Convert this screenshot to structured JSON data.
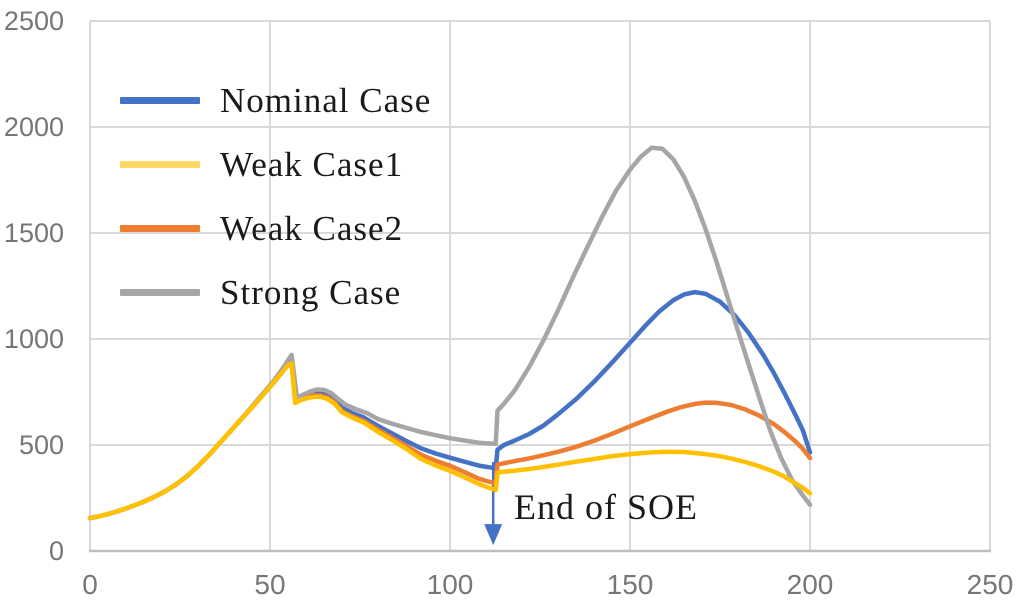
{
  "figure": {
    "background": "#FFFFFF",
    "gridline_color": "#D9D9D9",
    "axis_line_color": "#BFBFBF",
    "tick_label_color": "#767676"
  },
  "legend": {
    "items": [
      {
        "label": "Nominal Case",
        "swatch_color": "#4472C4"
      },
      {
        "label": "Weak Case1",
        "swatch_color": "#FFD966"
      },
      {
        "label": "Weak Case2",
        "swatch_color": "#ED7D31"
      },
      {
        "label": "Strong Case",
        "swatch_color": "#A6A6A6"
      }
    ]
  },
  "annotation": {
    "label": "End of SOE"
  },
  "chart_data": {
    "type": "line",
    "title": "",
    "xlabel": "",
    "ylabel": "",
    "grid": true,
    "legend_position": "upper-left-inside",
    "x_axis": {
      "min": 0,
      "max": 250,
      "ticks": [
        0,
        50,
        100,
        150,
        200,
        250
      ]
    },
    "y_axis": {
      "min": 0,
      "max": 2500,
      "ticks": [
        0,
        500,
        1000,
        1500,
        2000,
        2500
      ]
    },
    "annotation": {
      "text": "End of SOE",
      "x": 112,
      "y_from": 420,
      "y_tip": 28,
      "arrow_color": "#4472C4"
    },
    "draw_order": [
      0,
      2,
      3,
      1
    ],
    "series": [
      {
        "name": "Nominal Case",
        "color": "#4472C4",
        "points": [
          [
            0,
            155
          ],
          [
            3,
            165
          ],
          [
            6,
            179
          ],
          [
            9,
            195
          ],
          [
            12,
            213
          ],
          [
            15,
            233
          ],
          [
            18,
            256
          ],
          [
            21,
            283
          ],
          [
            24,
            315
          ],
          [
            27,
            354
          ],
          [
            30,
            400
          ],
          [
            33,
            452
          ],
          [
            36,
            508
          ],
          [
            39,
            565
          ],
          [
            42,
            622
          ],
          [
            45,
            678
          ],
          [
            48,
            736
          ],
          [
            51,
            794
          ],
          [
            53,
            836
          ],
          [
            55,
            880
          ],
          [
            56,
            888
          ],
          [
            57,
            715
          ],
          [
            58,
            722
          ],
          [
            60,
            736
          ],
          [
            62,
            746
          ],
          [
            64,
            748
          ],
          [
            66,
            738
          ],
          [
            68,
            715
          ],
          [
            70,
            675
          ],
          [
            73,
            650
          ],
          [
            76,
            630
          ],
          [
            80,
            590
          ],
          [
            84,
            554
          ],
          [
            88,
            518
          ],
          [
            92,
            484
          ],
          [
            96,
            460
          ],
          [
            100,
            440
          ],
          [
            104,
            421
          ],
          [
            108,
            403
          ],
          [
            111,
            395
          ],
          [
            112.7,
            390
          ],
          [
            113.2,
            478
          ],
          [
            115,
            500
          ],
          [
            118,
            521
          ],
          [
            122,
            552
          ],
          [
            126,
            592
          ],
          [
            130,
            645
          ],
          [
            135,
            716
          ],
          [
            140,
            798
          ],
          [
            145,
            888
          ],
          [
            150,
            982
          ],
          [
            154,
            1058
          ],
          [
            158,
            1128
          ],
          [
            162,
            1183
          ],
          [
            165,
            1210
          ],
          [
            168,
            1221
          ],
          [
            171,
            1213
          ],
          [
            175,
            1176
          ],
          [
            179,
            1113
          ],
          [
            183,
            1028
          ],
          [
            187,
            926
          ],
          [
            190,
            838
          ],
          [
            193,
            742
          ],
          [
            196,
            640
          ],
          [
            198,
            570
          ],
          [
            200,
            465
          ]
        ]
      },
      {
        "name": "Weak Case1",
        "color": "#FFC000",
        "points": [
          [
            0,
            155
          ],
          [
            3,
            165
          ],
          [
            6,
            179
          ],
          [
            9,
            195
          ],
          [
            12,
            213
          ],
          [
            15,
            233
          ],
          [
            18,
            256
          ],
          [
            21,
            283
          ],
          [
            24,
            315
          ],
          [
            27,
            354
          ],
          [
            30,
            400
          ],
          [
            33,
            452
          ],
          [
            36,
            508
          ],
          [
            39,
            565
          ],
          [
            42,
            622
          ],
          [
            45,
            678
          ],
          [
            48,
            736
          ],
          [
            51,
            794
          ],
          [
            53,
            835
          ],
          [
            55,
            876
          ],
          [
            56,
            884
          ],
          [
            57,
            698
          ],
          [
            58,
            708
          ],
          [
            60,
            720
          ],
          [
            62,
            727
          ],
          [
            64,
            727
          ],
          [
            66,
            717
          ],
          [
            68,
            694
          ],
          [
            70,
            654
          ],
          [
            73,
            628
          ],
          [
            76,
            606
          ],
          [
            80,
            562
          ],
          [
            84,
            522
          ],
          [
            88,
            480
          ],
          [
            92,
            434
          ],
          [
            96,
            404
          ],
          [
            100,
            378
          ],
          [
            104,
            348
          ],
          [
            108,
            316
          ],
          [
            111,
            297
          ],
          [
            112.7,
            288
          ],
          [
            113.2,
            370
          ],
          [
            115,
            374
          ],
          [
            118,
            379
          ],
          [
            122,
            387
          ],
          [
            126,
            396
          ],
          [
            130,
            407
          ],
          [
            135,
            421
          ],
          [
            140,
            434
          ],
          [
            145,
            447
          ],
          [
            150,
            457
          ],
          [
            155,
            464
          ],
          [
            160,
            468
          ],
          [
            165,
            467
          ],
          [
            170,
            459
          ],
          [
            174,
            450
          ],
          [
            178,
            437
          ],
          [
            182,
            420
          ],
          [
            186,
            399
          ],
          [
            190,
            374
          ],
          [
            193,
            350
          ],
          [
            196,
            318
          ],
          [
            198,
            298
          ],
          [
            200,
            272
          ]
        ]
      },
      {
        "name": "Weak Case2",
        "color": "#ED7D31",
        "points": [
          [
            0,
            155
          ],
          [
            3,
            165
          ],
          [
            6,
            179
          ],
          [
            9,
            195
          ],
          [
            12,
            213
          ],
          [
            15,
            233
          ],
          [
            18,
            256
          ],
          [
            21,
            283
          ],
          [
            24,
            315
          ],
          [
            27,
            354
          ],
          [
            30,
            400
          ],
          [
            33,
            452
          ],
          [
            36,
            508
          ],
          [
            39,
            565
          ],
          [
            42,
            622
          ],
          [
            45,
            678
          ],
          [
            48,
            736
          ],
          [
            51,
            794
          ],
          [
            53,
            836
          ],
          [
            55,
            878
          ],
          [
            56,
            886
          ],
          [
            57,
            708
          ],
          [
            58,
            716
          ],
          [
            60,
            728
          ],
          [
            62,
            734
          ],
          [
            64,
            734
          ],
          [
            66,
            724
          ],
          [
            68,
            700
          ],
          [
            70,
            660
          ],
          [
            73,
            634
          ],
          [
            76,
            614
          ],
          [
            80,
            572
          ],
          [
            84,
            534
          ],
          [
            88,
            494
          ],
          [
            92,
            454
          ],
          [
            96,
            426
          ],
          [
            100,
            402
          ],
          [
            104,
            372
          ],
          [
            108,
            341
          ],
          [
            111,
            326
          ],
          [
            112.7,
            320
          ],
          [
            113.2,
            408
          ],
          [
            115,
            414
          ],
          [
            118,
            424
          ],
          [
            122,
            437
          ],
          [
            126,
            452
          ],
          [
            130,
            468
          ],
          [
            135,
            491
          ],
          [
            140,
            520
          ],
          [
            145,
            553
          ],
          [
            150,
            588
          ],
          [
            155,
            622
          ],
          [
            160,
            655
          ],
          [
            164,
            678
          ],
          [
            168,
            694
          ],
          [
            171,
            700
          ],
          [
            174,
            699
          ],
          [
            178,
            689
          ],
          [
            182,
            668
          ],
          [
            186,
            638
          ],
          [
            190,
            598
          ],
          [
            193,
            560
          ],
          [
            196,
            516
          ],
          [
            198,
            482
          ],
          [
            200,
            438
          ]
        ]
      },
      {
        "name": "Strong Case",
        "color": "#A6A6A6",
        "points": [
          [
            0,
            155
          ],
          [
            3,
            165
          ],
          [
            6,
            179
          ],
          [
            9,
            195
          ],
          [
            12,
            213
          ],
          [
            15,
            233
          ],
          [
            18,
            256
          ],
          [
            21,
            283
          ],
          [
            24,
            315
          ],
          [
            27,
            354
          ],
          [
            30,
            400
          ],
          [
            33,
            452
          ],
          [
            36,
            508
          ],
          [
            39,
            565
          ],
          [
            42,
            622
          ],
          [
            45,
            682
          ],
          [
            48,
            742
          ],
          [
            51,
            802
          ],
          [
            53,
            848
          ],
          [
            55,
            900
          ],
          [
            56,
            925
          ],
          [
            57.5,
            722
          ],
          [
            59,
            736
          ],
          [
            61,
            752
          ],
          [
            63,
            762
          ],
          [
            65,
            760
          ],
          [
            67,
            745
          ],
          [
            69,
            716
          ],
          [
            71,
            690
          ],
          [
            74,
            668
          ],
          [
            77,
            650
          ],
          [
            80,
            622
          ],
          [
            84,
            600
          ],
          [
            88,
            580
          ],
          [
            92,
            561
          ],
          [
            96,
            546
          ],
          [
            100,
            532
          ],
          [
            104,
            521
          ],
          [
            108,
            511
          ],
          [
            111,
            507
          ],
          [
            112.7,
            505
          ],
          [
            113.2,
            662
          ],
          [
            115,
            695
          ],
          [
            118,
            758
          ],
          [
            122,
            868
          ],
          [
            126,
            995
          ],
          [
            130,
            1135
          ],
          [
            134,
            1285
          ],
          [
            138,
            1428
          ],
          [
            142,
            1568
          ],
          [
            146,
            1696
          ],
          [
            150,
            1798
          ],
          [
            153,
            1860
          ],
          [
            156,
            1902
          ],
          [
            159,
            1897
          ],
          [
            162,
            1848
          ],
          [
            165,
            1765
          ],
          [
            168,
            1652
          ],
          [
            171,
            1518
          ],
          [
            174,
            1365
          ],
          [
            177,
            1202
          ],
          [
            180,
            1038
          ],
          [
            183,
            878
          ],
          [
            186,
            720
          ],
          [
            189,
            565
          ],
          [
            192,
            438
          ],
          [
            195,
            335
          ],
          [
            198,
            262
          ],
          [
            200,
            218
          ]
        ]
      }
    ]
  }
}
